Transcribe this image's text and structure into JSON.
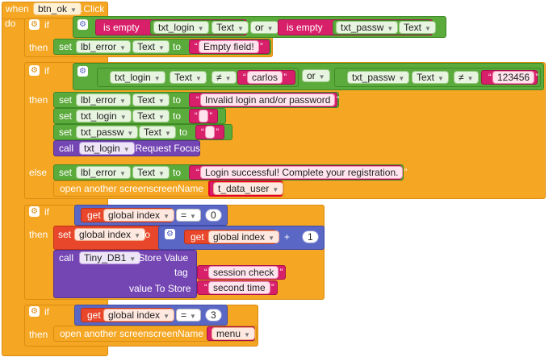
{
  "event": {
    "when": "when",
    "component": "btn_ok",
    "event": ".Click",
    "do": "do"
  },
  "kw": {
    "if": "if",
    "then": "then",
    "else": "else",
    "set": "set",
    "to": "to",
    "call": "call",
    "get": "get",
    "or": "or",
    "is_empty": "is empty",
    "open_screen": "open another screen",
    "screen_name": "screenName",
    "tag": "tag",
    "value_to_store": "value To Store",
    "text": "Text",
    "request_focus": ".Request Focus",
    "store_value": ".Store Value",
    "neq": "≠",
    "eq": "=",
    "plus": "+"
  },
  "components": {
    "txt_login": "txt_login",
    "txt_passw": "txt_passw",
    "lbl_error": "lbl_error",
    "tinydb": "Tiny_DB1"
  },
  "vars": {
    "global_index": "global index"
  },
  "strings": {
    "empty_field": "Empty field!",
    "carlos": "carlos",
    "pw": "123456",
    "invalid": "Invalid login and/or password",
    "success": "Login successful! Complete your registration.",
    "t_data_user": "t_data_user",
    "session_check": "session check",
    "second_time": "second time",
    "menu": "menu"
  },
  "numbers": {
    "n0": "0",
    "n1": "1",
    "n3": "3"
  },
  "icons": {
    "gear": "gear-icon",
    "dropdown": "dropdown-arrow-icon"
  },
  "colors": {
    "control": "#F5A623",
    "text": "#5BAA3C",
    "math": "#5A67C4",
    "procedure": "#7446B4",
    "string": "#D8206A",
    "variable": "#E8472B"
  }
}
